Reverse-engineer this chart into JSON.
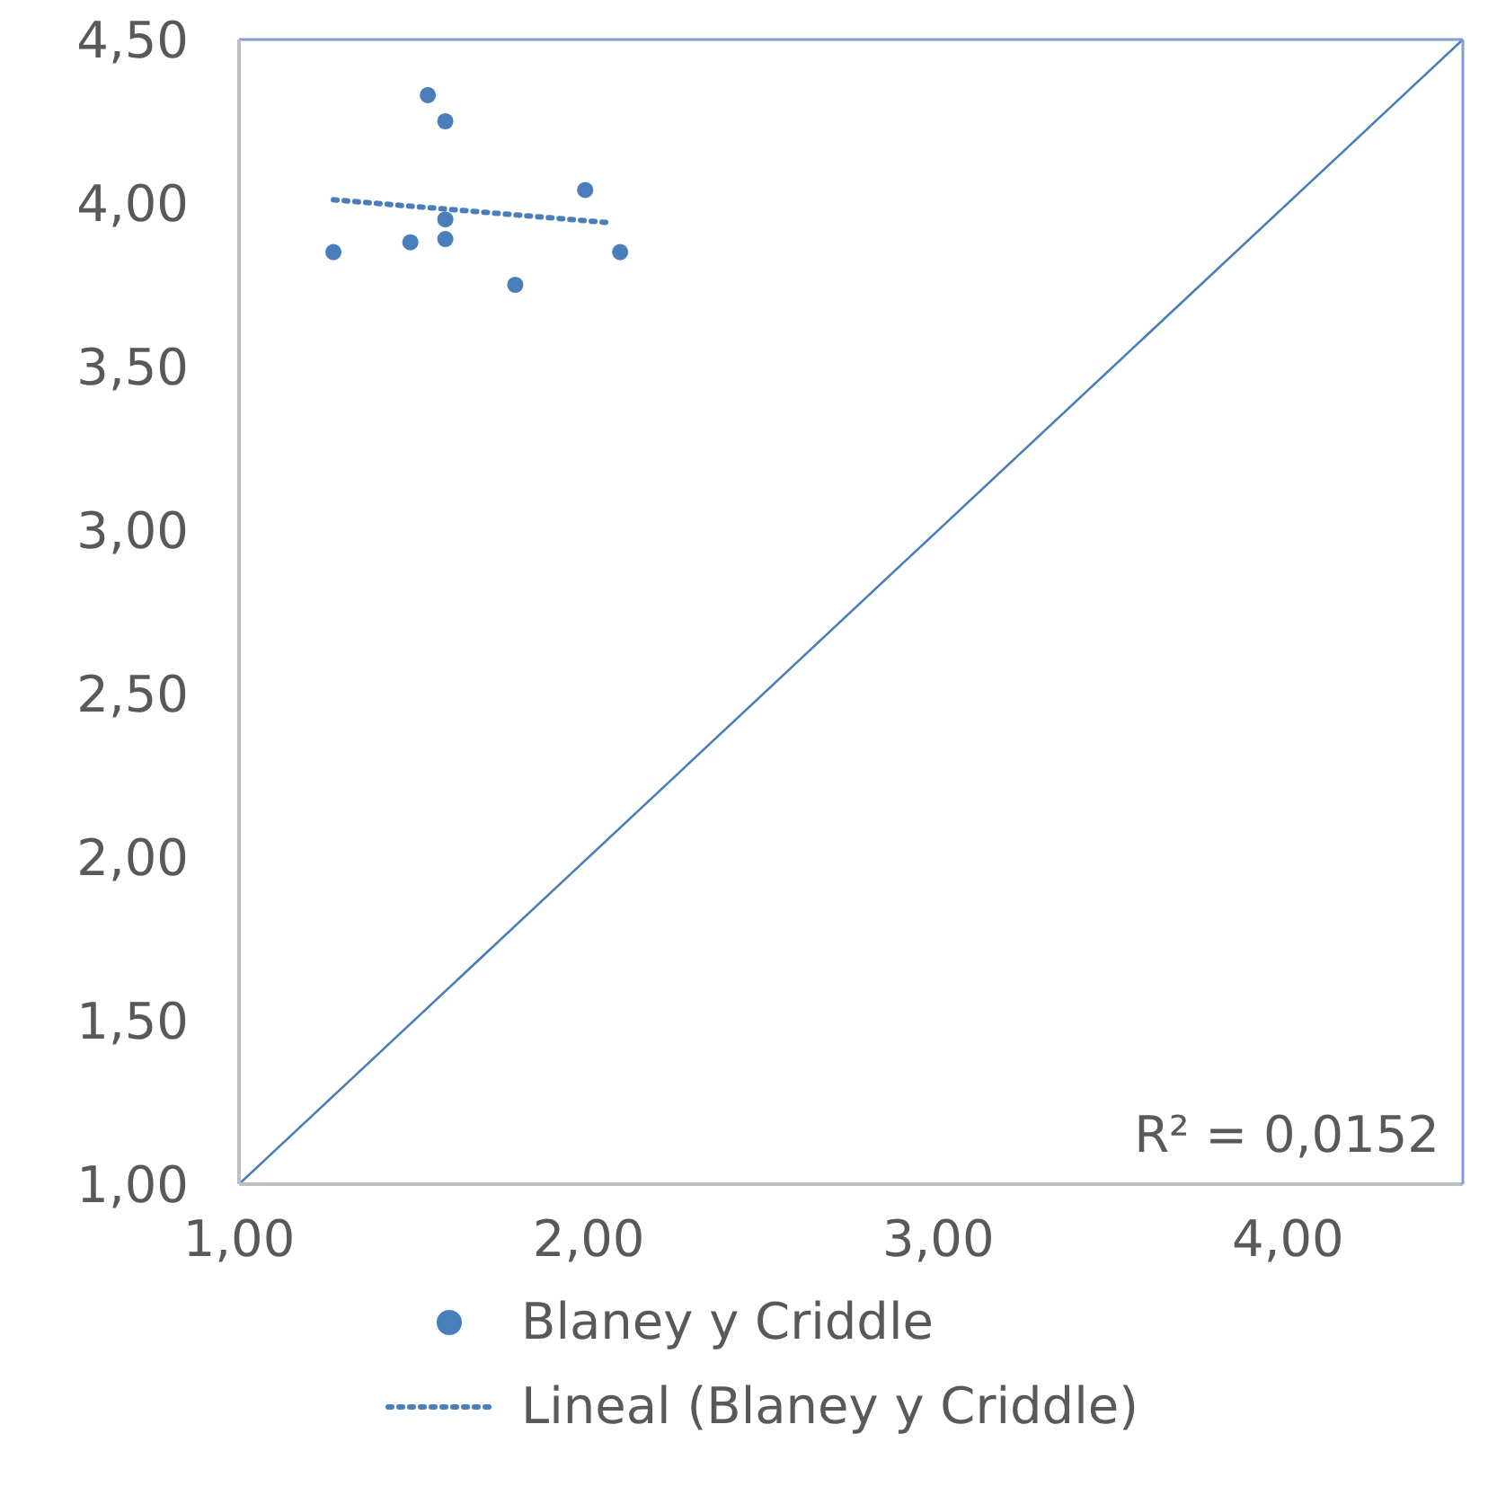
{
  "chart_data": {
    "type": "scatter",
    "xlim": [
      1,
      4.5
    ],
    "xticks": [
      {
        "value": 1,
        "label": "1,00"
      },
      {
        "value": 2,
        "label": "2,00"
      },
      {
        "value": 3,
        "label": "3,00"
      },
      {
        "value": 4,
        "label": "4,00"
      }
    ],
    "ylim": [
      1,
      4.5
    ],
    "yticks": [
      {
        "value": 1,
        "label": "1,00"
      },
      {
        "value": 1.5,
        "label": "1,50"
      },
      {
        "value": 2,
        "label": "2,00"
      },
      {
        "value": 2.5,
        "label": "2,50"
      },
      {
        "value": 3,
        "label": "3,00"
      },
      {
        "value": 3.5,
        "label": "3,50"
      },
      {
        "value": 4,
        "label": "4,00"
      },
      {
        "value": 4.5,
        "label": "4,50"
      }
    ],
    "legend": "bottom",
    "annotations": [
      "R² = 0,0152"
    ],
    "series": [
      {
        "name": "Blaney y Criddle",
        "marker": "circle",
        "color": "#4a7ebb",
        "x": [
          1.27,
          1.54,
          1.59,
          1.49,
          1.59,
          1.59,
          1.79,
          1.99,
          2.09
        ],
        "values": [
          3.85,
          4.33,
          4.25,
          3.88,
          3.95,
          3.89,
          3.75,
          4.04,
          3.85
        ]
      },
      {
        "name": "Lineal (Blaney y Criddle)",
        "type": "line",
        "marker": "none",
        "line_style": "dotted",
        "color": "#4a7ebb",
        "x": [
          1.27,
          2.06
        ],
        "values": [
          4.01,
          3.94
        ]
      },
      {
        "type": "line",
        "marker": "none",
        "line_style": "solid",
        "color": "#4a7ebb",
        "x": [
          1,
          4.5
        ],
        "values": [
          1,
          4.5
        ]
      }
    ]
  }
}
